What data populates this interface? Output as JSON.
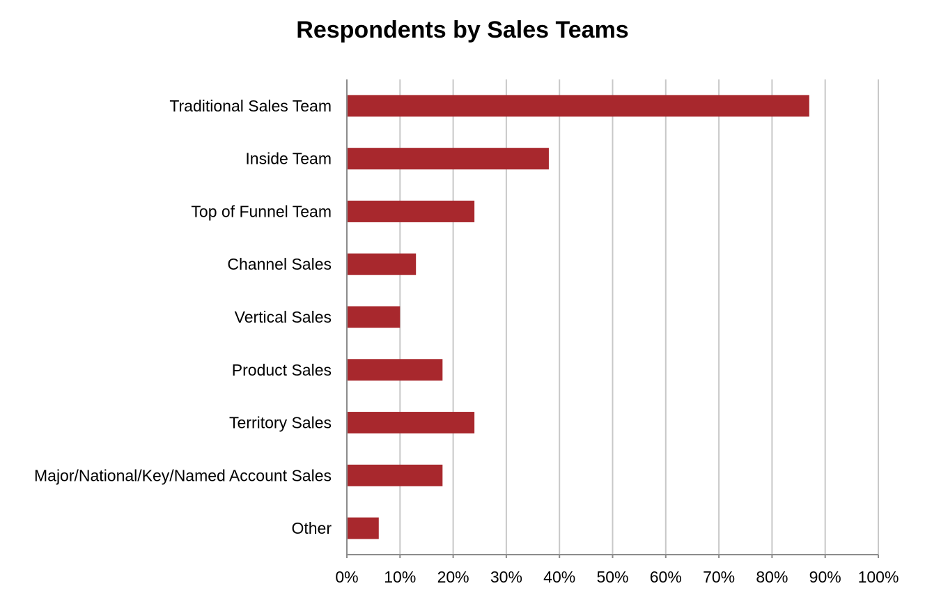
{
  "chart_data": {
    "type": "bar",
    "orientation": "horizontal",
    "title": "Respondents by Sales Teams",
    "xlabel": "",
    "ylabel": "",
    "categories": [
      "Traditional Sales Team",
      "Inside Team",
      "Top of Funnel Team",
      "Channel Sales",
      "Vertical Sales",
      "Product Sales",
      "Territory Sales",
      "Major/National/Key/Named Account Sales",
      "Other"
    ],
    "values": [
      87,
      38,
      24,
      13,
      10,
      18,
      24,
      18,
      6
    ],
    "value_unit": "%",
    "xlim": [
      0,
      100
    ],
    "x_ticks": [
      0,
      10,
      20,
      30,
      40,
      50,
      60,
      70,
      80,
      90,
      100
    ],
    "x_tick_labels": [
      "0%",
      "10%",
      "20%",
      "30%",
      "40%",
      "50%",
      "60%",
      "70%",
      "80%",
      "90%",
      "100%"
    ],
    "grid": "vertical",
    "legend": "none",
    "colors": {
      "bar": "#a8282d",
      "grid": "#c8c8c8",
      "axis": "#8c8c8c",
      "text": "#000000"
    }
  }
}
